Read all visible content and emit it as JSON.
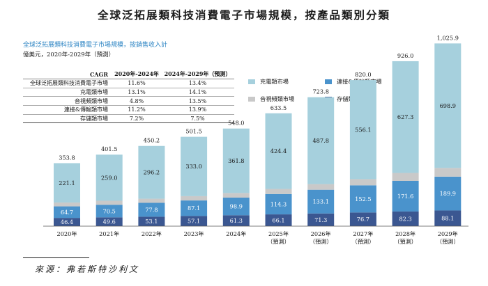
{
  "title": "全球泛拓展類科技消費電子市場規模，按產品類別分類",
  "subtitle": "全球泛拓展類科技消費電子市場規模，按銷售收入計",
  "unit": "億美元，2020年-2029年（預測）",
  "source": "來源：弗若斯特沙利文",
  "cagr_table": {
    "headers": [
      "CAGR",
      "2020年-2024年",
      "2024年-2029年（預測）"
    ],
    "rows": [
      [
        "全球泛拓展類科技消費電子市場",
        "11.6%",
        "13.4%"
      ],
      [
        "充電類市場",
        "13.1%",
        "14.1%"
      ],
      [
        "音視頻類市場",
        "4.8%",
        "13.5%"
      ],
      [
        "連接&傳輸類市場",
        "11.2%",
        "13.9%"
      ],
      [
        "存儲類市場",
        "7.2%",
        "7.5%"
      ]
    ]
  },
  "colors": {
    "charging": "#a6d0dd",
    "connectivity": "#4a93cc",
    "audio_video": "#c9c9c9",
    "storage": "#3b5791"
  },
  "chart_data": {
    "type": "bar",
    "stacked": true,
    "title": "",
    "xlabel": "",
    "ylabel": "億美元",
    "categories": [
      "2020年",
      "2021年",
      "2022年",
      "2023年",
      "2024年",
      "2025年",
      "2026年",
      "2027年",
      "2028年",
      "2029年"
    ],
    "forecast_label": "（預測）",
    "forecast_from_index": 5,
    "series": [
      {
        "name": "存儲類市場",
        "key": "storage",
        "values": [
          46.4,
          49.6,
          53.1,
          57.1,
          61.3,
          66.1,
          71.3,
          76.7,
          82.3,
          88.1
        ]
      },
      {
        "name": "連接&傳輸類市場",
        "key": "connectivity",
        "values": [
          64.7,
          70.5,
          77.8,
          87.1,
          98.9,
          114.3,
          133.1,
          152.5,
          171.6,
          189.9
        ]
      },
      {
        "name": "音視頻類市場",
        "key": "audio_video",
        "values": [
          21.5,
          22.4,
          23.1,
          24.3,
          26.0,
          28.7,
          31.6,
          34.7,
          44.8,
          48.9
        ]
      },
      {
        "name": "充電類市場",
        "key": "charging",
        "values": [
          221.1,
          259.0,
          296.2,
          333.0,
          361.8,
          424.4,
          487.8,
          556.1,
          627.3,
          698.9
        ]
      }
    ],
    "totals": [
      353.8,
      401.5,
      450.2,
      501.5,
      548.0,
      633.5,
      723.8,
      820.0,
      926.0,
      1025.9
    ],
    "legend": [
      {
        "name": "充電類市場",
        "key": "charging"
      },
      {
        "name": "連接&傳輸類市場",
        "key": "connectivity"
      },
      {
        "name": "音視頻類市場",
        "key": "audio_video"
      },
      {
        "name": "存儲類市場",
        "key": "storage"
      }
    ],
    "ylim": [
      0,
      1030
    ]
  }
}
